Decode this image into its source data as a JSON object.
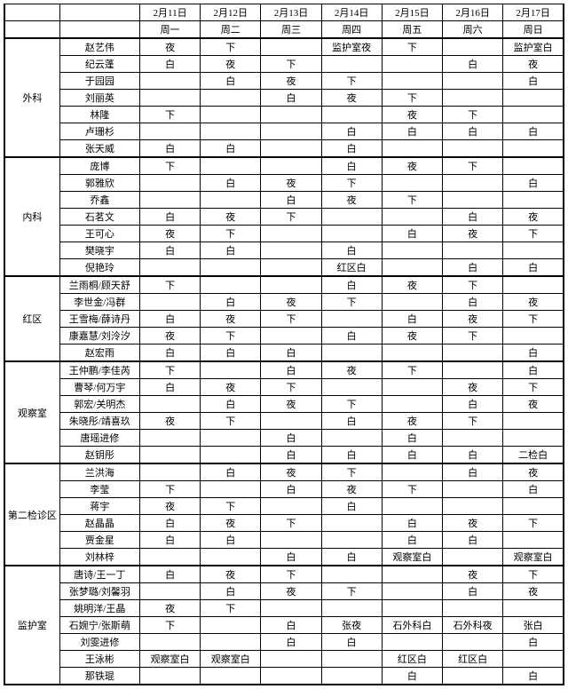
{
  "header": {
    "dates": [
      "2月11日",
      "2月12日",
      "2月13日",
      "2月14日",
      "2月15日",
      "2月16日",
      "2月17日"
    ],
    "weekdays": [
      "周一",
      "周二",
      "周三",
      "周四",
      "周五",
      "周六",
      "周日"
    ]
  },
  "sections": [
    {
      "dept": "外科",
      "rows": [
        {
          "name": "赵艺伟",
          "cells": [
            "夜",
            "下",
            "",
            "监护室夜",
            "下",
            "",
            "监护室白"
          ]
        },
        {
          "name": "纪云蓬",
          "cells": [
            "白",
            "夜",
            "下",
            "",
            "",
            "白",
            "夜"
          ]
        },
        {
          "name": "于园园",
          "cells": [
            "",
            "白",
            "夜",
            "下",
            "",
            "",
            "白"
          ]
        },
        {
          "name": "刘丽英",
          "cells": [
            "",
            "",
            "白",
            "夜",
            "下",
            "",
            ""
          ]
        },
        {
          "name": "林隆",
          "cells": [
            "下",
            "",
            "",
            "",
            "夜",
            "下",
            ""
          ]
        },
        {
          "name": "卢珊杉",
          "cells": [
            "",
            "",
            "",
            "白",
            "白",
            "白",
            "白"
          ]
        },
        {
          "name": "张天威",
          "cells": [
            "白",
            "白",
            "",
            "白",
            "",
            "",
            ""
          ]
        }
      ]
    },
    {
      "dept": "内科",
      "rows": [
        {
          "name": "庞博",
          "cells": [
            "下",
            "",
            "",
            "白",
            "夜",
            "下",
            ""
          ]
        },
        {
          "name": "郭雅欣",
          "cells": [
            "",
            "白",
            "夜",
            "下",
            "",
            "",
            "白"
          ]
        },
        {
          "name": "乔鑫",
          "cells": [
            "",
            "",
            "白",
            "夜",
            "下",
            "",
            ""
          ]
        },
        {
          "name": "石茗文",
          "cells": [
            "白",
            "夜",
            "下",
            "",
            "",
            "白",
            "夜"
          ]
        },
        {
          "name": "王可心",
          "cells": [
            "夜",
            "下",
            "",
            "",
            "白",
            "夜",
            "下"
          ]
        },
        {
          "name": "樊晓宇",
          "cells": [
            "白",
            "白",
            "",
            "白",
            "",
            "",
            ""
          ]
        },
        {
          "name": "倪艳玲",
          "cells": [
            "",
            "",
            "",
            "红区白",
            "",
            "白",
            "白"
          ]
        }
      ]
    },
    {
      "dept": "红区",
      "rows": [
        {
          "name": "兰雨桐/顾天舒",
          "cells": [
            "下",
            "",
            "",
            "白",
            "夜",
            "下",
            ""
          ]
        },
        {
          "name": "李世金/冯群",
          "cells": [
            "",
            "白",
            "夜",
            "下",
            "",
            "白",
            "夜"
          ]
        },
        {
          "name": "王雪梅/薛诗丹",
          "cells": [
            "白",
            "夜",
            "下",
            "",
            "白",
            "夜",
            "下"
          ]
        },
        {
          "name": "康嘉慧/刘泠汐",
          "cells": [
            "夜",
            "下",
            "",
            "白",
            "夜",
            "下",
            ""
          ]
        },
        {
          "name": "赵宏雨",
          "cells": [
            "白",
            "白",
            "白",
            "",
            "",
            "",
            "白"
          ]
        }
      ]
    },
    {
      "dept": "观察室",
      "rows": [
        {
          "name": "王仲鹏/李佳芮",
          "cells": [
            "下",
            "",
            "白",
            "夜",
            "下",
            "",
            "白"
          ]
        },
        {
          "name": "曹琴/何万宇",
          "cells": [
            "白",
            "夜",
            "下",
            "",
            "",
            "夜",
            "下"
          ]
        },
        {
          "name": "郭宏/关明杰",
          "cells": [
            "",
            "白",
            "夜",
            "下",
            "",
            "白",
            "夜"
          ]
        },
        {
          "name": "朱晓彤/靖喜玖",
          "cells": [
            "夜",
            "下",
            "",
            "白",
            "夜",
            "下",
            ""
          ]
        },
        {
          "name": "唐瑶进修",
          "cells": [
            "",
            "",
            "白",
            "",
            "白",
            "",
            ""
          ]
        },
        {
          "name": "赵钥彤",
          "cells": [
            "",
            "",
            "白",
            "白",
            "白",
            "白",
            "二检白"
          ]
        }
      ]
    },
    {
      "dept": "第二检诊区",
      "rows": [
        {
          "name": "兰洪海",
          "cells": [
            "",
            "白",
            "夜",
            "下",
            "",
            "白",
            "夜"
          ]
        },
        {
          "name": "李莹",
          "cells": [
            "下",
            "",
            "白",
            "夜",
            "下",
            "",
            "白"
          ]
        },
        {
          "name": "蒋宇",
          "cells": [
            "夜",
            "下",
            "",
            "白",
            "",
            "",
            ""
          ]
        },
        {
          "name": "赵晶晶",
          "cells": [
            "白",
            "夜",
            "下",
            "",
            "白",
            "夜",
            "下"
          ]
        },
        {
          "name": "贾金星",
          "cells": [
            "白",
            "白",
            "",
            "",
            "白",
            "白",
            ""
          ]
        },
        {
          "name": "刘林梓",
          "cells": [
            "",
            "",
            "白",
            "白",
            "观察室白",
            "",
            "观察室白"
          ]
        }
      ]
    },
    {
      "dept": "监护室",
      "rows": [
        {
          "name": "唐诗/王一丁",
          "cells": [
            "白",
            "夜",
            "下",
            "",
            "",
            "夜",
            "下"
          ]
        },
        {
          "name": "张梦璐/刘馨羽",
          "cells": [
            "",
            "白",
            "夜",
            "下",
            "",
            "白",
            "夜"
          ]
        },
        {
          "name": "姚明洋/王晶",
          "cells": [
            "夜",
            "下",
            "",
            "",
            "",
            "",
            ""
          ]
        },
        {
          "name": "石婉宁/张斯萌",
          "cells": [
            "下",
            "",
            "白",
            "张夜",
            "石外科白",
            "石外科夜",
            "张白"
          ]
        },
        {
          "name": "刘雯进修",
          "cells": [
            "",
            "",
            "白",
            "白",
            "",
            "",
            "白"
          ]
        },
        {
          "name": "王泳彬",
          "cells": [
            "观察室白",
            "观察室白",
            "",
            "",
            "红区白",
            "红区白",
            ""
          ]
        },
        {
          "name": "那铁琨",
          "cells": [
            "",
            "",
            "",
            "",
            "白",
            "",
            "白"
          ]
        }
      ]
    }
  ]
}
